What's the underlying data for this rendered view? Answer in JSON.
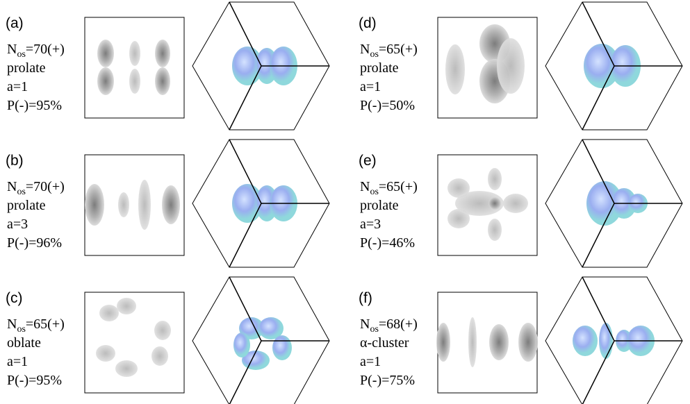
{
  "panels": [
    {
      "label": "(a)",
      "n": "N",
      "sub": "os",
      "eq": "=70(+)",
      "shape": "prolate",
      "a": "a=1",
      "p": "P(-)=95%"
    },
    {
      "label": "(b)",
      "n": "N",
      "sub": "os",
      "eq": "=70(+)",
      "shape": "prolate",
      "a": "a=3",
      "p": "P(-)=96%"
    },
    {
      "label": "(c)",
      "n": "N",
      "sub": "os",
      "eq": "=65(+)",
      "shape": "oblate",
      "a": "a=1",
      "p": "P(-)=95%"
    },
    {
      "label": "(d)",
      "n": "N",
      "sub": "os",
      "eq": "=65(+)",
      "shape": "prolate",
      "a": "a=1",
      "p": "P(-)=50%"
    },
    {
      "label": "(e)",
      "n": "N",
      "sub": "os",
      "eq": "=65(+)",
      "shape": "prolate",
      "a": "a=3",
      "p": "P(-)=46%"
    },
    {
      "label": "(f)",
      "n": "N",
      "sub": "os",
      "eq": "=68(+)",
      "shape": "α-cluster",
      "a": "a=1",
      "p": "P(-)=75%"
    }
  ]
}
